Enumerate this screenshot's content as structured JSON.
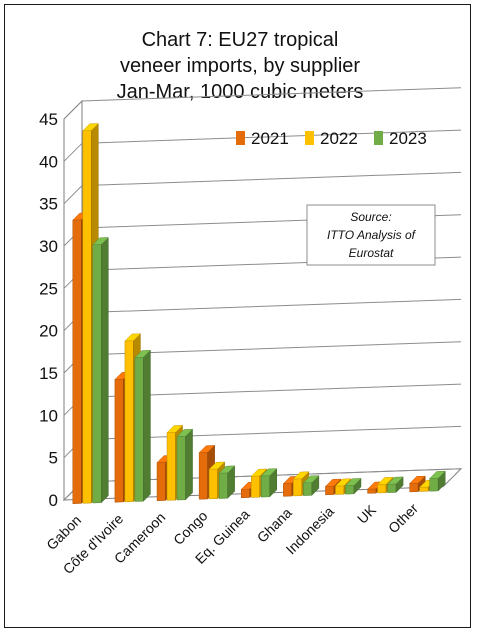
{
  "chart_data": {
    "type": "bar",
    "title": [
      "Chart 7: EU27 tropical",
      "veneer imports, by supplier",
      "Jan-Mar, 1000 cubic meters"
    ],
    "categories": [
      "Gabon",
      "Côte d'Ivoire",
      "Cameroon",
      "Congo",
      "Eq. Guinea",
      "Ghana",
      "Indonesia",
      "UK",
      "Other"
    ],
    "series": [
      {
        "name": "2021",
        "color": "#e46c0a",
        "values": [
          33.5,
          14.5,
          4.5,
          5.5,
          1.0,
          1.5,
          1.0,
          0.5,
          1.0
        ]
      },
      {
        "name": "2022",
        "color": "#ffc000",
        "values": [
          44.0,
          19.0,
          8.0,
          3.5,
          2.5,
          2.0,
          1.0,
          1.0,
          0.5
        ]
      },
      {
        "name": "2023",
        "color": "#70ad47",
        "values": [
          30.5,
          17.0,
          7.5,
          3.0,
          2.5,
          1.5,
          1.0,
          1.0,
          1.5
        ]
      }
    ],
    "yticks": [
      0,
      5,
      10,
      15,
      20,
      25,
      30,
      35,
      40,
      45
    ],
    "ylim": [
      0,
      45
    ],
    "grid": true,
    "legend": "top-right",
    "source_note": [
      "Source:",
      "ITTO Analysis of",
      "Eurostat"
    ]
  }
}
